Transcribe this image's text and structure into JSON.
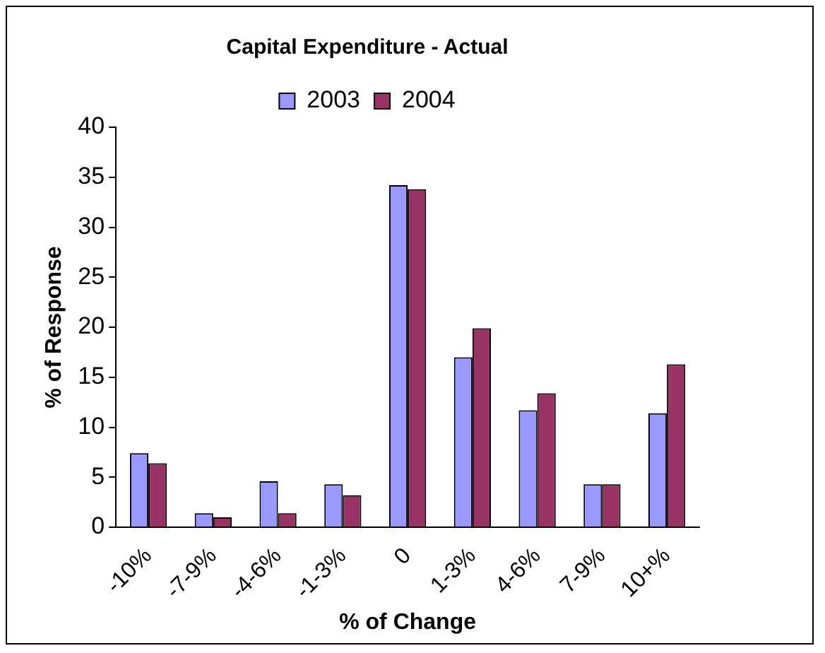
{
  "chart_data": {
    "type": "bar",
    "title": "Capital Expenditure - Actual",
    "xlabel": "% of Change",
    "ylabel": "% of Response",
    "categories": [
      "-10%",
      "-7-9%",
      "-4-6%",
      "-1-3%",
      "0",
      "1-3%",
      "4-6%",
      "7-9%",
      "10+%"
    ],
    "series": [
      {
        "name": "2003",
        "color": "#9999ff",
        "values": [
          7.4,
          1.4,
          4.6,
          4.3,
          34.2,
          17,
          11.7,
          4.3,
          11.4
        ]
      },
      {
        "name": "2004",
        "color": "#993366",
        "values": [
          6.4,
          1.0,
          1.4,
          3.2,
          33.8,
          19.9,
          13.4,
          4.3,
          16.3
        ]
      }
    ],
    "ylim": [
      0,
      40
    ],
    "yticks": [
      0,
      5,
      10,
      15,
      20,
      25,
      30,
      35,
      40
    ],
    "grid": false,
    "legend": "top"
  }
}
